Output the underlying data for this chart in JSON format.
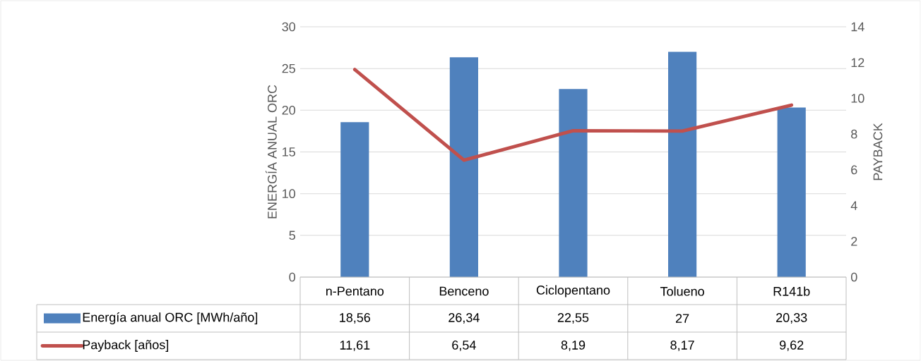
{
  "chart_data": {
    "type": "bar",
    "ylabel": "ENERGÍA ANUAL ORC",
    "y2label": "PAYBACK",
    "categories": [
      "n-Pentano",
      "Benceno",
      "Ciclopentano",
      "Tolueno",
      "R141b"
    ],
    "series": [
      {
        "name": "Energía anual ORC [MWh/año]",
        "color": "#4f81bd",
        "values": [
          18.56,
          26.34,
          22.55,
          27,
          20.33
        ],
        "value_labels": [
          "18,56",
          "26,34",
          "22,55",
          "27",
          "20,33"
        ]
      },
      {
        "name": "Payback [años]",
        "type": "line",
        "axis": "y2",
        "color": "#c0504d",
        "values": [
          11.61,
          6.54,
          8.19,
          8.17,
          9.62
        ],
        "value_labels": [
          "11,61",
          "6,54",
          "8,19",
          "8,17",
          "9,62"
        ]
      }
    ],
    "ylim": [
      0,
      30
    ],
    "yticks": [
      0,
      5,
      10,
      15,
      20,
      25,
      30
    ],
    "y2lim": [
      0,
      14
    ],
    "y2ticks": [
      0,
      2,
      4,
      6,
      8,
      10,
      12,
      14
    ],
    "grid": "y",
    "legend": "bottom",
    "line_style": "solid",
    "marker": "none"
  }
}
